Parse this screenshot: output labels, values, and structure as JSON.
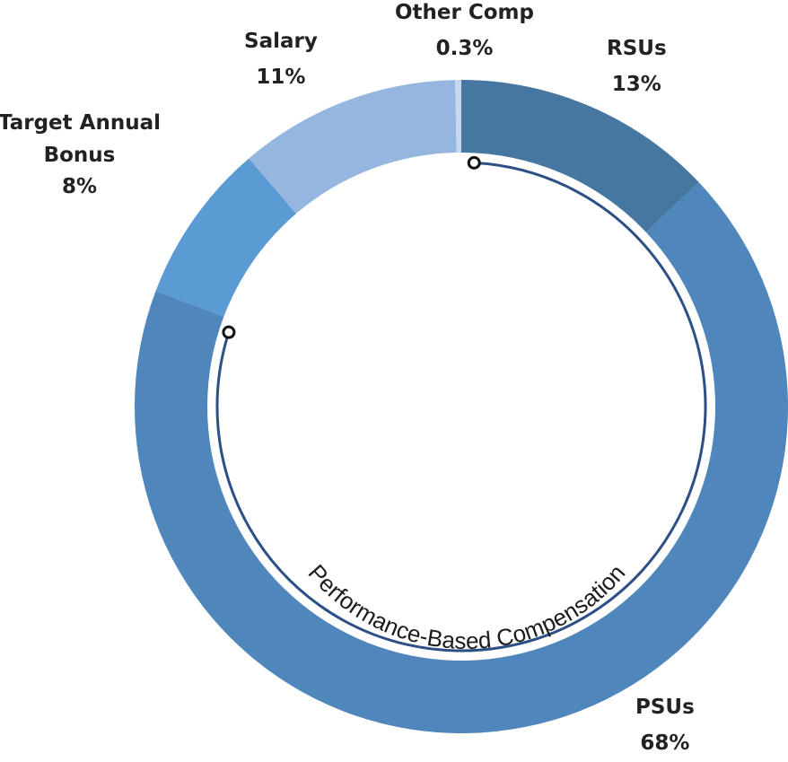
{
  "chart_data": {
    "type": "pie",
    "style": "donut",
    "title": "",
    "slices": [
      {
        "name": "RSUs",
        "value": 13,
        "label": "13%",
        "color": "#4577a1"
      },
      {
        "name": "PSUs",
        "value": 68,
        "label": "68%",
        "color": "#4f86bc"
      },
      {
        "name": "Target Annual Bonus",
        "label_line1": "Target Annual",
        "label_line2": "Bonus",
        "value": 8,
        "label": "8%",
        "color": "#5b9bd4"
      },
      {
        "name": "Salary",
        "value": 11,
        "label": "11%",
        "color": "#95b7df"
      },
      {
        "name": "Other Comp",
        "value": 0.3,
        "label": "0.3%",
        "color": "#c7d8ee"
      }
    ],
    "bracket": {
      "label": "Performance-Based Compensation",
      "covers": [
        "RSUs",
        "PSUs"
      ],
      "color": "#2c4f86"
    }
  }
}
